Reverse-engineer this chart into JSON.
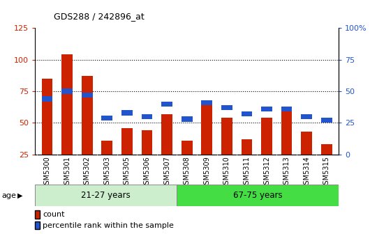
{
  "title": "GDS288 / 242896_at",
  "samples": [
    "GSM5300",
    "GSM5301",
    "GSM5302",
    "GSM5303",
    "GSM5305",
    "GSM5306",
    "GSM5307",
    "GSM5308",
    "GSM5309",
    "GSM5310",
    "GSM5311",
    "GSM5312",
    "GSM5313",
    "GSM5314",
    "GSM5315"
  ],
  "count_values": [
    85,
    104,
    87,
    36,
    46,
    44,
    57,
    36,
    64,
    54,
    37,
    54,
    62,
    43,
    33
  ],
  "percentile_values": [
    44,
    50,
    47,
    29,
    33,
    30,
    40,
    28,
    41,
    37,
    32,
    36,
    36,
    30,
    27
  ],
  "group1_label": "21-27 years",
  "group2_label": "67-75 years",
  "group1_count": 7,
  "group2_count": 8,
  "age_label": "age",
  "left_ylim": [
    25,
    125
  ],
  "right_ylim": [
    0,
    100
  ],
  "left_yticks": [
    25,
    50,
    75,
    100,
    125
  ],
  "right_yticks": [
    0,
    25,
    50,
    75,
    100
  ],
  "right_yticklabels": [
    "0",
    "25",
    "50",
    "75",
    "100%"
  ],
  "bar_color": "#cc2200",
  "percentile_color": "#2255cc",
  "group1_bg": "#cceecc",
  "group2_bg": "#44dd44",
  "legend_count_label": "count",
  "legend_percentile_label": "percentile rank within the sample",
  "left_tick_color": "#cc2200",
  "right_tick_color": "#2255cc",
  "grid_linestyle": "dotted",
  "grid_color": "black",
  "grid_yticks": [
    50,
    75,
    100
  ],
  "bar_width": 0.55,
  "blue_bar_height": 4,
  "xtick_bg": "#e8e8e8"
}
